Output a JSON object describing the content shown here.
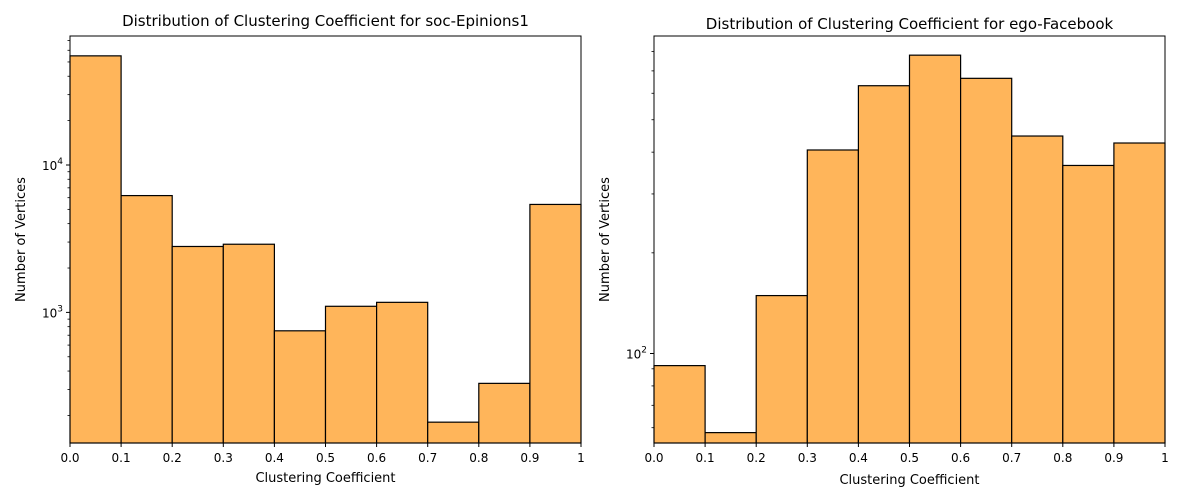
{
  "chart_data": [
    {
      "type": "bar",
      "title": "Distribution of Clustering Coefficient for soc-Epinions1",
      "xlabel": "Clustering Coefficient",
      "ylabel": "Number of Vertices",
      "y_scale": "log",
      "xlim": [
        0,
        1
      ],
      "ylim": [
        130,
        75000
      ],
      "bin_edges": [
        0,
        0.1,
        0.2,
        0.3,
        0.4,
        0.5,
        0.6,
        0.7,
        0.8,
        0.9,
        1
      ],
      "values": [
        55000,
        6200,
        2800,
        2900,
        750,
        1100,
        1170,
        180,
        330,
        5400
      ],
      "x_ticks": [
        "0.0",
        "0.1",
        "0.2",
        "0.3",
        "0.4",
        "0.5",
        "0.6",
        "0.7",
        "0.8",
        "0.9",
        "1"
      ],
      "y_ticks": [
        {
          "value": 1000,
          "base": "10",
          "exp": "3"
        },
        {
          "value": 10000,
          "base": "10",
          "exp": "4"
        }
      ],
      "bar_color": "#ffb55a",
      "edge_color": "#000000"
    },
    {
      "type": "bar",
      "title": "Distribution of Clustering Coefficient for ego-Facebook",
      "xlabel": "Clustering Coefficient",
      "ylabel": "Number of Vertices",
      "y_scale": "log",
      "xlim": [
        0,
        1
      ],
      "ylim": [
        54,
        890
      ],
      "bin_edges": [
        0,
        0.1,
        0.2,
        0.3,
        0.4,
        0.5,
        0.6,
        0.7,
        0.8,
        0.9,
        1
      ],
      "values": [
        92,
        58,
        149,
        406,
        632,
        780,
        665,
        447,
        365,
        426
      ],
      "x_ticks": [
        "0.0",
        "0.1",
        "0.2",
        "0.3",
        "0.4",
        "0.5",
        "0.6",
        "0.7",
        "0.8",
        "0.9",
        "1"
      ],
      "y_ticks": [
        {
          "value": 100,
          "base": "10",
          "exp": "2"
        }
      ],
      "bar_color": "#ffb55a",
      "edge_color": "#000000"
    }
  ]
}
